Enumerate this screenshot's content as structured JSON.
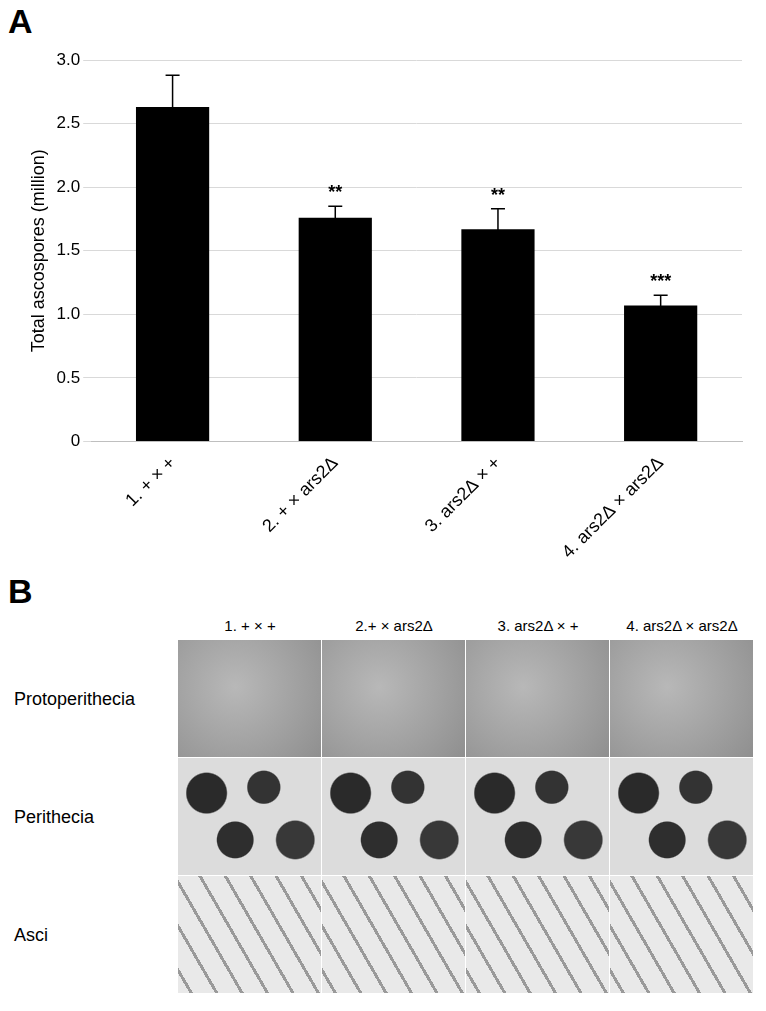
{
  "chart_data": {
    "type": "bar",
    "panel_label": "A",
    "y_label": "Total ascospores (million)",
    "categories": [
      "1. + × +",
      "2. + × ars2Δ",
      "3. ars2Δ × +",
      "4. ars2Δ × ars2Δ"
    ],
    "values": [
      2.63,
      1.76,
      1.67,
      1.07
    ],
    "errors": [
      0.25,
      0.09,
      0.16,
      0.08
    ],
    "annotations": [
      null,
      "**",
      "**",
      "***"
    ],
    "color": "#000000",
    "ylim": [
      0,
      3
    ],
    "yticks": [
      0,
      0.5,
      1,
      1.5,
      2,
      2.5,
      3
    ],
    "grid": true
  },
  "panel_b": {
    "letter": "B",
    "columns": [
      "1. + × +",
      "2.+ × ars2Δ",
      "3. ars2Δ × +",
      "4. ars2Δ × ars2Δ"
    ],
    "rows": [
      "Protoperithecia",
      "Perithecia",
      "Asci"
    ]
  }
}
